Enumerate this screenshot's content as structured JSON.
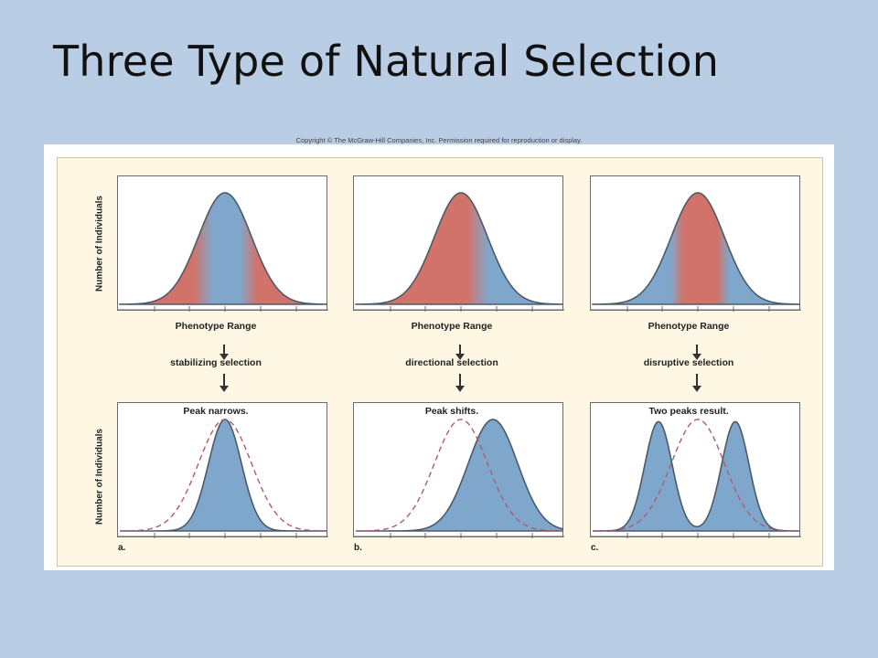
{
  "slide": {
    "title": "Three Type of Natural Selection",
    "copyright": "Copyright © The McGraw-Hill Companies, Inc. Permission required for reproduction or display."
  },
  "figure": {
    "y_axis_label": "Number of Individuals",
    "x_axis_label": "Phenotype Range",
    "colors": {
      "selected_against": "#d2736b",
      "favored": "#7fa7cc",
      "curve_outline": "#4d5a66",
      "original_distribution_dash": "#b05a6e"
    },
    "panels": [
      {
        "letter": "a.",
        "selection": "stabilizing selection",
        "result": "Peak narrows."
      },
      {
        "letter": "b.",
        "selection": "directional selection",
        "result": "Peak shifts."
      },
      {
        "letter": "c.",
        "selection": "disruptive selection",
        "result": "Two peaks result."
      }
    ]
  }
}
